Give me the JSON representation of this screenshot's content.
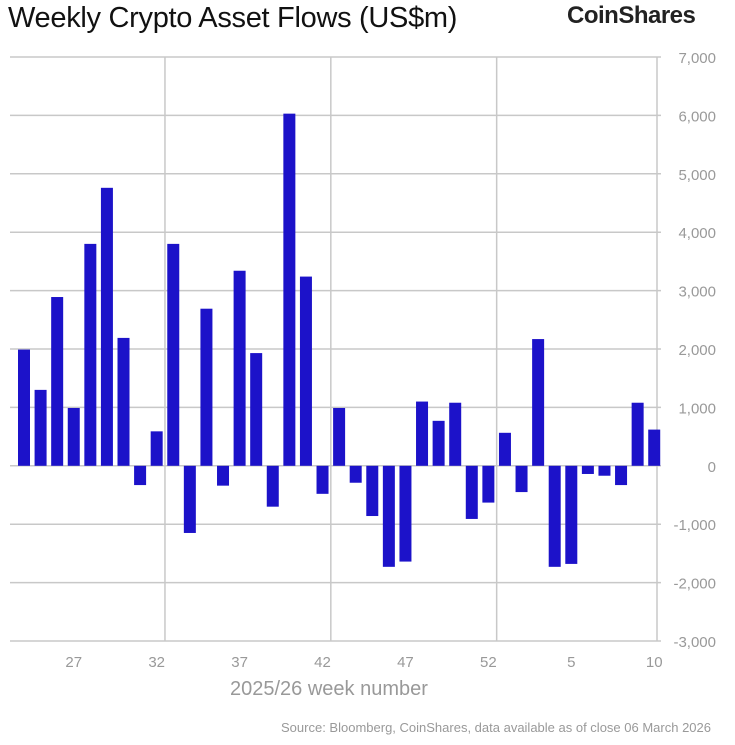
{
  "chart_data": {
    "type": "bar",
    "title": "Weekly Crypto Asset Flows (US$m)",
    "xlabel": "2025/26 week number",
    "ylabel": "",
    "ylim": [
      -3000,
      7000
    ],
    "yticks": [
      7000,
      6000,
      5000,
      4000,
      3000,
      2000,
      1000,
      0,
      -1000,
      -2000,
      -3000
    ],
    "ytick_labels": [
      "7,000",
      "6,000",
      "5,000",
      "4,000",
      "3,000",
      "2,000",
      "1,000",
      "0",
      "-1,000",
      "-2,000",
      "-3,000"
    ],
    "xtick_labels": [
      "27",
      "32",
      "37",
      "42",
      "47",
      "52",
      "5",
      "10"
    ],
    "categories": [
      "24",
      "25",
      "26",
      "27",
      "28",
      "29",
      "30",
      "31",
      "32",
      "33",
      "34",
      "35",
      "36",
      "37",
      "38",
      "39",
      "40",
      "41",
      "42",
      "43",
      "44",
      "45",
      "46",
      "47",
      "48",
      "49",
      "50",
      "51",
      "52",
      "1",
      "2",
      "3",
      "4",
      "5",
      "6",
      "7",
      "8",
      "9",
      "10"
    ],
    "values": [
      1990,
      1300,
      2890,
      990,
      3800,
      4760,
      2190,
      -330,
      590,
      3800,
      -1150,
      2690,
      -340,
      3340,
      1930,
      -700,
      6030,
      3240,
      -480,
      990,
      -290,
      -860,
      -1730,
      -1640,
      1100,
      770,
      1080,
      -910,
      -630,
      565,
      -450,
      2170,
      -1730,
      -1680,
      -140,
      -170,
      -330,
      1080,
      620
    ],
    "bar_color": "#1c12c9",
    "grid": true,
    "y_axis_position": "right"
  },
  "logo": "CoinShares",
  "source": "Source: Bloomberg, CoinShares, data available as of close 06 March 2026"
}
